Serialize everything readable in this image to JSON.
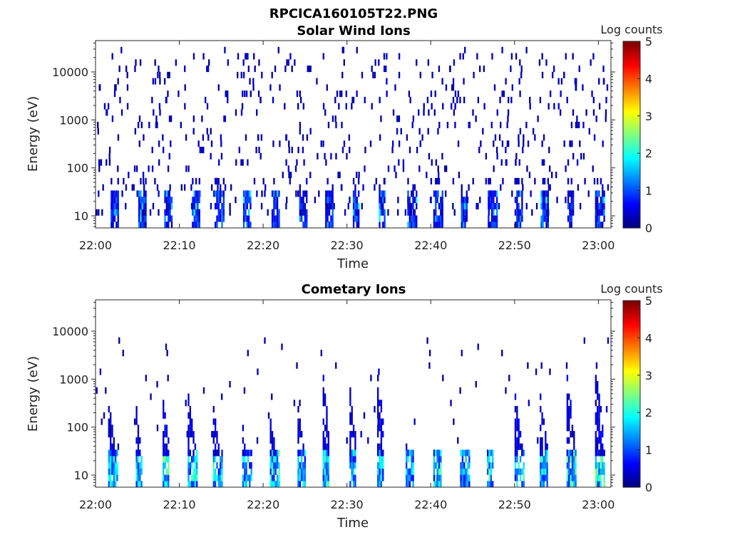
{
  "figure": {
    "title": "RPCICA160105T22.PNG"
  },
  "chart_data": [
    {
      "type": "heatmap",
      "title": "Solar Wind Ions",
      "xlabel": "Time",
      "ylabel": "Energy (eV)",
      "colorbar_label": "Log counts",
      "x_ticks": [
        "22:00",
        "22:10",
        "22:20",
        "22:30",
        "22:40",
        "22:50",
        "23:00"
      ],
      "x_range_minutes": [
        0,
        61.5
      ],
      "y_ticks": [
        "10",
        "100",
        "1000",
        "10000"
      ],
      "y_scale": "log",
      "y_range": [
        5.6,
        45000
      ],
      "colorbar_ticks": [
        "0",
        "1",
        "2",
        "3",
        "4",
        "5"
      ],
      "colorbar_range": [
        0,
        5
      ],
      "colormap": "jet",
      "burst_times_min": [
        1.8,
        5.1,
        8.2,
        11.5,
        14.2,
        17.6,
        21.0,
        24.3,
        27.4,
        30.7,
        33.8,
        37.2,
        40.3,
        43.6,
        46.8,
        50.0,
        53.1,
        56.3,
        59.6
      ],
      "burst_max_log_counts": 2.0,
      "background": "sparse single counts (log counts ~0.1-0.6) scattered across 10-30000 eV"
    },
    {
      "type": "heatmap",
      "title": "Cometary Ions",
      "xlabel": "Time",
      "ylabel": "Energy (eV)",
      "colorbar_label": "Log counts",
      "x_ticks": [
        "22:00",
        "22:10",
        "22:20",
        "22:30",
        "22:40",
        "22:50",
        "23:00"
      ],
      "x_range_minutes": [
        0,
        61.5
      ],
      "y_ticks": [
        "10",
        "100",
        "1000",
        "10000"
      ],
      "y_scale": "log",
      "y_range": [
        5.6,
        45000
      ],
      "colorbar_ticks": [
        "0",
        "1",
        "2",
        "3",
        "4",
        "5"
      ],
      "colorbar_range": [
        0,
        5
      ],
      "colormap": "jet",
      "burst_times_min": [
        1.5,
        4.8,
        8.0,
        11.0,
        14.0,
        17.5,
        20.8,
        24.1,
        27.1,
        30.3,
        33.6,
        37.0,
        40.3,
        43.5,
        46.7,
        50.0,
        53.0,
        56.2,
        59.6
      ],
      "burst_max_log_counts": 2.7,
      "dispersion_peak_energy_eV": [
        400,
        250,
        400,
        500,
        300,
        120,
        250,
        300,
        1100,
        600,
        1100,
        60,
        40,
        40,
        40,
        500,
        500,
        1200,
        1500
      ]
    }
  ]
}
